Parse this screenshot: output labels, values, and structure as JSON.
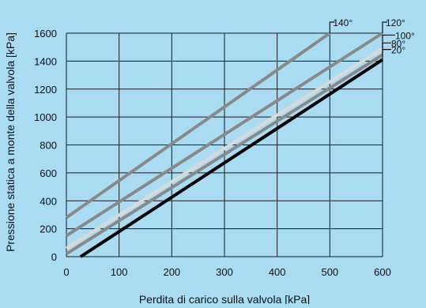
{
  "colors": {
    "background": "#a9dcf3",
    "grid": "#1a1a1a",
    "text": "#111111"
  },
  "chart_data": {
    "type": "line",
    "title": "",
    "xlabel": "Perdita di carico sulla valvola [kPa]",
    "ylabel": "Pressione statica a monte della valvola [kPa]",
    "xlim": [
      0,
      600
    ],
    "ylim": [
      0,
      1600
    ],
    "x_ticks": [
      "0",
      "100",
      "200",
      "300",
      "400",
      "500",
      "600"
    ],
    "y_ticks": [
      "0",
      "200",
      "400",
      "600",
      "800",
      "1000",
      "1200",
      "1400",
      "1600"
    ],
    "grid": true,
    "series": [
      {
        "name": "20°",
        "color": "#000000",
        "x": [
          27,
          600
        ],
        "y": [
          0,
          1410
        ]
      },
      {
        "name": "80°",
        "color": "#898989",
        "x": [
          0,
          600
        ],
        "y": [
          20,
          1445
        ]
      },
      {
        "name": "100°",
        "color": "#d9d9d9",
        "x": [
          0,
          600
        ],
        "y": [
          60,
          1490
        ]
      },
      {
        "name": "120°",
        "color": "#898989",
        "x": [
          0,
          600
        ],
        "y": [
          150,
          1600
        ]
      },
      {
        "name": "140°",
        "color": "#898989",
        "x": [
          0,
          500
        ],
        "y": [
          280,
          1600
        ]
      }
    ]
  }
}
